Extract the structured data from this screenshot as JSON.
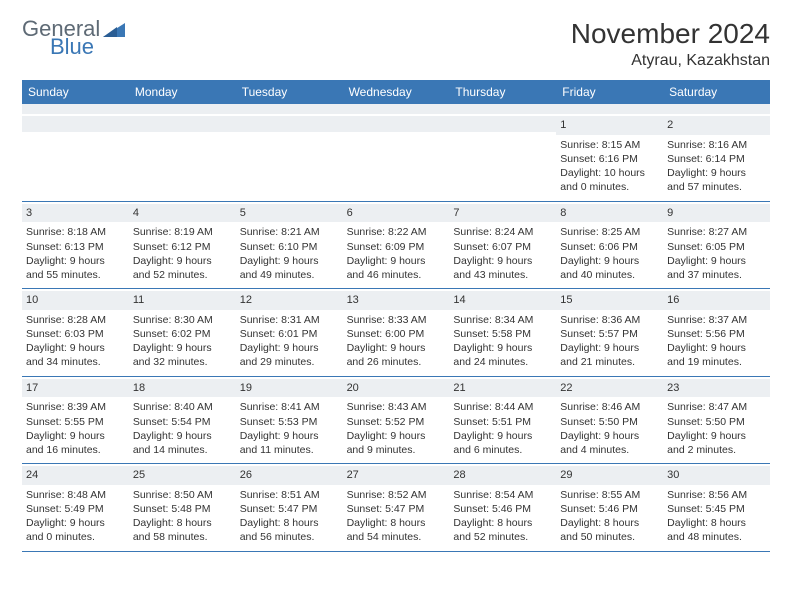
{
  "logo": {
    "word1": "General",
    "word2": "Blue"
  },
  "title": "November 2024",
  "location": "Atyrau, Kazakhstan",
  "colors": {
    "header_bg": "#3a77b5",
    "header_text": "#ffffff",
    "daynum_bg": "#eceff2",
    "text": "#333333",
    "logo_gray": "#5e6a75",
    "logo_blue": "#3a77b5",
    "page_bg": "#ffffff",
    "border": "#3a77b5"
  },
  "typography": {
    "title_fontsize": 28,
    "location_fontsize": 16,
    "dayheader_fontsize": 12,
    "cell_fontsize": 10.5,
    "daynum_fontsize": 11
  },
  "layout": {
    "columns": 7,
    "type": "calendar-grid"
  },
  "day_names": [
    "Sunday",
    "Monday",
    "Tuesday",
    "Wednesday",
    "Thursday",
    "Friday",
    "Saturday"
  ],
  "weeks": [
    [
      null,
      null,
      null,
      null,
      null,
      {
        "n": "1",
        "sunrise": "Sunrise: 8:15 AM",
        "sunset": "Sunset: 6:16 PM",
        "day1": "Daylight: 10 hours",
        "day2": "and 0 minutes."
      },
      {
        "n": "2",
        "sunrise": "Sunrise: 8:16 AM",
        "sunset": "Sunset: 6:14 PM",
        "day1": "Daylight: 9 hours",
        "day2": "and 57 minutes."
      }
    ],
    [
      {
        "n": "3",
        "sunrise": "Sunrise: 8:18 AM",
        "sunset": "Sunset: 6:13 PM",
        "day1": "Daylight: 9 hours",
        "day2": "and 55 minutes."
      },
      {
        "n": "4",
        "sunrise": "Sunrise: 8:19 AM",
        "sunset": "Sunset: 6:12 PM",
        "day1": "Daylight: 9 hours",
        "day2": "and 52 minutes."
      },
      {
        "n": "5",
        "sunrise": "Sunrise: 8:21 AM",
        "sunset": "Sunset: 6:10 PM",
        "day1": "Daylight: 9 hours",
        "day2": "and 49 minutes."
      },
      {
        "n": "6",
        "sunrise": "Sunrise: 8:22 AM",
        "sunset": "Sunset: 6:09 PM",
        "day1": "Daylight: 9 hours",
        "day2": "and 46 minutes."
      },
      {
        "n": "7",
        "sunrise": "Sunrise: 8:24 AM",
        "sunset": "Sunset: 6:07 PM",
        "day1": "Daylight: 9 hours",
        "day2": "and 43 minutes."
      },
      {
        "n": "8",
        "sunrise": "Sunrise: 8:25 AM",
        "sunset": "Sunset: 6:06 PM",
        "day1": "Daylight: 9 hours",
        "day2": "and 40 minutes."
      },
      {
        "n": "9",
        "sunrise": "Sunrise: 8:27 AM",
        "sunset": "Sunset: 6:05 PM",
        "day1": "Daylight: 9 hours",
        "day2": "and 37 minutes."
      }
    ],
    [
      {
        "n": "10",
        "sunrise": "Sunrise: 8:28 AM",
        "sunset": "Sunset: 6:03 PM",
        "day1": "Daylight: 9 hours",
        "day2": "and 34 minutes."
      },
      {
        "n": "11",
        "sunrise": "Sunrise: 8:30 AM",
        "sunset": "Sunset: 6:02 PM",
        "day1": "Daylight: 9 hours",
        "day2": "and 32 minutes."
      },
      {
        "n": "12",
        "sunrise": "Sunrise: 8:31 AM",
        "sunset": "Sunset: 6:01 PM",
        "day1": "Daylight: 9 hours",
        "day2": "and 29 minutes."
      },
      {
        "n": "13",
        "sunrise": "Sunrise: 8:33 AM",
        "sunset": "Sunset: 6:00 PM",
        "day1": "Daylight: 9 hours",
        "day2": "and 26 minutes."
      },
      {
        "n": "14",
        "sunrise": "Sunrise: 8:34 AM",
        "sunset": "Sunset: 5:58 PM",
        "day1": "Daylight: 9 hours",
        "day2": "and 24 minutes."
      },
      {
        "n": "15",
        "sunrise": "Sunrise: 8:36 AM",
        "sunset": "Sunset: 5:57 PM",
        "day1": "Daylight: 9 hours",
        "day2": "and 21 minutes."
      },
      {
        "n": "16",
        "sunrise": "Sunrise: 8:37 AM",
        "sunset": "Sunset: 5:56 PM",
        "day1": "Daylight: 9 hours",
        "day2": "and 19 minutes."
      }
    ],
    [
      {
        "n": "17",
        "sunrise": "Sunrise: 8:39 AM",
        "sunset": "Sunset: 5:55 PM",
        "day1": "Daylight: 9 hours",
        "day2": "and 16 minutes."
      },
      {
        "n": "18",
        "sunrise": "Sunrise: 8:40 AM",
        "sunset": "Sunset: 5:54 PM",
        "day1": "Daylight: 9 hours",
        "day2": "and 14 minutes."
      },
      {
        "n": "19",
        "sunrise": "Sunrise: 8:41 AM",
        "sunset": "Sunset: 5:53 PM",
        "day1": "Daylight: 9 hours",
        "day2": "and 11 minutes."
      },
      {
        "n": "20",
        "sunrise": "Sunrise: 8:43 AM",
        "sunset": "Sunset: 5:52 PM",
        "day1": "Daylight: 9 hours",
        "day2": "and 9 minutes."
      },
      {
        "n": "21",
        "sunrise": "Sunrise: 8:44 AM",
        "sunset": "Sunset: 5:51 PM",
        "day1": "Daylight: 9 hours",
        "day2": "and 6 minutes."
      },
      {
        "n": "22",
        "sunrise": "Sunrise: 8:46 AM",
        "sunset": "Sunset: 5:50 PM",
        "day1": "Daylight: 9 hours",
        "day2": "and 4 minutes."
      },
      {
        "n": "23",
        "sunrise": "Sunrise: 8:47 AM",
        "sunset": "Sunset: 5:50 PM",
        "day1": "Daylight: 9 hours",
        "day2": "and 2 minutes."
      }
    ],
    [
      {
        "n": "24",
        "sunrise": "Sunrise: 8:48 AM",
        "sunset": "Sunset: 5:49 PM",
        "day1": "Daylight: 9 hours",
        "day2": "and 0 minutes."
      },
      {
        "n": "25",
        "sunrise": "Sunrise: 8:50 AM",
        "sunset": "Sunset: 5:48 PM",
        "day1": "Daylight: 8 hours",
        "day2": "and 58 minutes."
      },
      {
        "n": "26",
        "sunrise": "Sunrise: 8:51 AM",
        "sunset": "Sunset: 5:47 PM",
        "day1": "Daylight: 8 hours",
        "day2": "and 56 minutes."
      },
      {
        "n": "27",
        "sunrise": "Sunrise: 8:52 AM",
        "sunset": "Sunset: 5:47 PM",
        "day1": "Daylight: 8 hours",
        "day2": "and 54 minutes."
      },
      {
        "n": "28",
        "sunrise": "Sunrise: 8:54 AM",
        "sunset": "Sunset: 5:46 PM",
        "day1": "Daylight: 8 hours",
        "day2": "and 52 minutes."
      },
      {
        "n": "29",
        "sunrise": "Sunrise: 8:55 AM",
        "sunset": "Sunset: 5:46 PM",
        "day1": "Daylight: 8 hours",
        "day2": "and 50 minutes."
      },
      {
        "n": "30",
        "sunrise": "Sunrise: 8:56 AM",
        "sunset": "Sunset: 5:45 PM",
        "day1": "Daylight: 8 hours",
        "day2": "and 48 minutes."
      }
    ]
  ]
}
